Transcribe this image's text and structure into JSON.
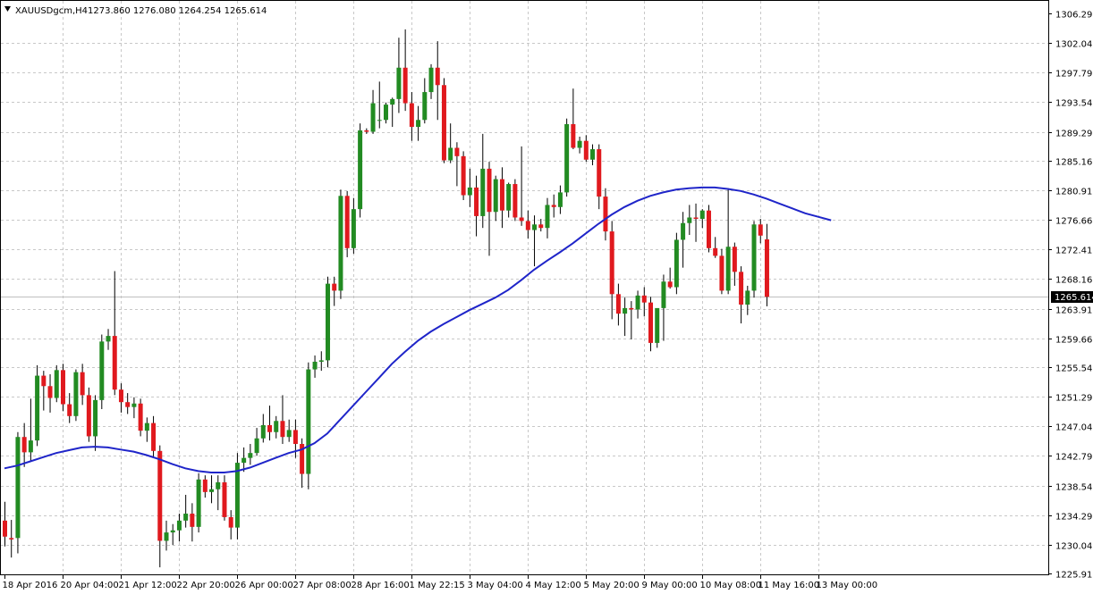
{
  "header": {
    "symbol": "XAUUSDgcm,H4",
    "ohlc": "1273.860 1276.080 1264.254 1265.614",
    "icon": "chart-dropdown-icon"
  },
  "colors": {
    "background": "#ffffff",
    "grid": "#c8c8c8",
    "bull_body": "#228b22",
    "bear_body": "#e0191e",
    "wick": "#000000",
    "moving_average": "#1f25c9",
    "last_price_line": "#c0c0c0",
    "last_price_tag": "#000000"
  },
  "chart_data": {
    "type": "candlestick",
    "symbol": "XAUUSDgcm",
    "timeframe": "H4",
    "ylim": [
      1225.915,
      1306.29
    ],
    "grid": true,
    "yticks": [
      1306.29,
      1302.04,
      1297.79,
      1293.54,
      1289.29,
      1285.165,
      1280.915,
      1276.665,
      1272.415,
      1268.165,
      1263.915,
      1259.665,
      1255.54,
      1251.29,
      1247.04,
      1242.79,
      1238.54,
      1234.29,
      1230.04,
      1225.915
    ],
    "ytick_labels": [
      "1306.290",
      "1302.040",
      "1297.790",
      "1293.540",
      "1289.290",
      "1285.165",
      "1280.915",
      "1276.665",
      "1272.415",
      "1268.165",
      "1263.915",
      "1259.665",
      "1255.540",
      "1251.290",
      "1247.040",
      "1242.790",
      "1238.540",
      "1234.290",
      "1230.040",
      "1225.915"
    ],
    "xtick_labels": [
      {
        "bar": 0,
        "label": "18 Apr 2016"
      },
      {
        "bar": 9,
        "label": "20 Apr 04:00"
      },
      {
        "bar": 18,
        "label": "21 Apr 12:00"
      },
      {
        "bar": 27,
        "label": "22 Apr 20:00"
      },
      {
        "bar": 36,
        "label": "26 Apr 00:00"
      },
      {
        "bar": 45,
        "label": "27 Apr 08:00"
      },
      {
        "bar": 54,
        "label": "28 Apr 16:00"
      },
      {
        "bar": 63,
        "label": "1 May 22:15"
      },
      {
        "bar": 72,
        "label": "3 May 04:00"
      },
      {
        "bar": 81,
        "label": "4 May 12:00"
      },
      {
        "bar": 90,
        "label": "5 May 20:00"
      },
      {
        "bar": 99,
        "label": "9 May 00:00"
      },
      {
        "bar": 108,
        "label": "10 May 08:00"
      },
      {
        "bar": 117,
        "label": "11 May 16:00"
      },
      {
        "bar": 126,
        "label": "13 May 00:00"
      }
    ],
    "last_price": 1265.614,
    "last_price_label": "1265.614",
    "candles": [
      {
        "o": 1233.5,
        "h": 1236.2,
        "l": 1229.8,
        "c": 1231.2
      },
      {
        "o": 1231.0,
        "h": 1233.6,
        "l": 1228.2,
        "c": 1230.8
      },
      {
        "o": 1231.0,
        "h": 1246.2,
        "l": 1228.8,
        "c": 1245.5
      },
      {
        "o": 1245.5,
        "h": 1247.5,
        "l": 1241.2,
        "c": 1243.3
      },
      {
        "o": 1243.3,
        "h": 1251.0,
        "l": 1242.0,
        "c": 1245.0
      },
      {
        "o": 1245.0,
        "h": 1255.8,
        "l": 1244.2,
        "c": 1254.3
      },
      {
        "o": 1254.3,
        "h": 1255.0,
        "l": 1249.3,
        "c": 1252.8
      },
      {
        "o": 1252.8,
        "h": 1254.5,
        "l": 1249.0,
        "c": 1251.1
      },
      {
        "o": 1251.1,
        "h": 1255.8,
        "l": 1250.5,
        "c": 1255.1
      },
      {
        "o": 1255.1,
        "h": 1256.0,
        "l": 1249.2,
        "c": 1250.2
      },
      {
        "o": 1250.2,
        "h": 1251.8,
        "l": 1247.5,
        "c": 1248.5
      },
      {
        "o": 1248.5,
        "h": 1255.2,
        "l": 1247.8,
        "c": 1254.8
      },
      {
        "o": 1254.8,
        "h": 1256.0,
        "l": 1250.1,
        "c": 1251.5
      },
      {
        "o": 1251.5,
        "h": 1252.6,
        "l": 1244.8,
        "c": 1245.6
      },
      {
        "o": 1245.6,
        "h": 1251.5,
        "l": 1243.5,
        "c": 1250.8
      },
      {
        "o": 1250.8,
        "h": 1260.2,
        "l": 1249.5,
        "c": 1259.2
      },
      {
        "o": 1259.2,
        "h": 1261.0,
        "l": 1258.0,
        "c": 1260.0
      },
      {
        "o": 1260.0,
        "h": 1269.3,
        "l": 1251.5,
        "c": 1252.3
      },
      {
        "o": 1252.3,
        "h": 1253.2,
        "l": 1249.0,
        "c": 1250.5
      },
      {
        "o": 1250.5,
        "h": 1251.8,
        "l": 1248.8,
        "c": 1249.8
      },
      {
        "o": 1249.8,
        "h": 1251.2,
        "l": 1248.2,
        "c": 1250.3
      },
      {
        "o": 1250.3,
        "h": 1251.0,
        "l": 1245.6,
        "c": 1246.4
      },
      {
        "o": 1246.4,
        "h": 1248.3,
        "l": 1244.8,
        "c": 1247.5
      },
      {
        "o": 1247.5,
        "h": 1248.5,
        "l": 1242.5,
        "c": 1243.5
      },
      {
        "o": 1243.5,
        "h": 1244.3,
        "l": 1226.8,
        "c": 1230.6
      },
      {
        "o": 1230.6,
        "h": 1233.5,
        "l": 1229.2,
        "c": 1231.8
      },
      {
        "o": 1231.8,
        "h": 1233.0,
        "l": 1230.0,
        "c": 1232.1
      },
      {
        "o": 1232.1,
        "h": 1234.5,
        "l": 1230.5,
        "c": 1233.5
      },
      {
        "o": 1233.5,
        "h": 1237.2,
        "l": 1232.5,
        "c": 1234.5
      },
      {
        "o": 1234.5,
        "h": 1236.0,
        "l": 1230.5,
        "c": 1232.6
      },
      {
        "o": 1232.6,
        "h": 1240.3,
        "l": 1231.8,
        "c": 1239.4
      },
      {
        "o": 1239.4,
        "h": 1240.0,
        "l": 1236.8,
        "c": 1237.6
      },
      {
        "o": 1237.6,
        "h": 1240.0,
        "l": 1236.0,
        "c": 1238.0
      },
      {
        "o": 1238.0,
        "h": 1240.0,
        "l": 1235.0,
        "c": 1239.0
      },
      {
        "o": 1239.0,
        "h": 1240.0,
        "l": 1233.5,
        "c": 1234.0
      },
      {
        "o": 1234.0,
        "h": 1235.0,
        "l": 1230.8,
        "c": 1232.5
      },
      {
        "o": 1232.5,
        "h": 1243.2,
        "l": 1230.8,
        "c": 1241.8
      },
      {
        "o": 1241.8,
        "h": 1244.0,
        "l": 1240.5,
        "c": 1242.5
      },
      {
        "o": 1242.5,
        "h": 1244.5,
        "l": 1241.5,
        "c": 1243.2
      },
      {
        "o": 1243.2,
        "h": 1246.8,
        "l": 1242.8,
        "c": 1245.3
      },
      {
        "o": 1245.3,
        "h": 1248.8,
        "l": 1244.7,
        "c": 1247.2
      },
      {
        "o": 1247.2,
        "h": 1250.0,
        "l": 1245.0,
        "c": 1246.2
      },
      {
        "o": 1246.2,
        "h": 1248.5,
        "l": 1245.3,
        "c": 1247.8
      },
      {
        "o": 1247.8,
        "h": 1251.5,
        "l": 1244.5,
        "c": 1245.5
      },
      {
        "o": 1245.5,
        "h": 1248.0,
        "l": 1244.8,
        "c": 1246.5
      },
      {
        "o": 1246.5,
        "h": 1248.0,
        "l": 1242.5,
        "c": 1244.5
      },
      {
        "o": 1244.5,
        "h": 1245.3,
        "l": 1238.2,
        "c": 1240.2
      },
      {
        "o": 1240.2,
        "h": 1256.2,
        "l": 1238.0,
        "c": 1255.2
      },
      {
        "o": 1255.2,
        "h": 1257.2,
        "l": 1254.0,
        "c": 1256.3
      },
      {
        "o": 1256.3,
        "h": 1257.8,
        "l": 1255.0,
        "c": 1256.5
      },
      {
        "o": 1256.5,
        "h": 1268.5,
        "l": 1255.5,
        "c": 1267.5
      },
      {
        "o": 1267.5,
        "h": 1268.5,
        "l": 1264.3,
        "c": 1266.5
      },
      {
        "o": 1266.5,
        "h": 1281.0,
        "l": 1265.3,
        "c": 1280.1
      },
      {
        "o": 1280.1,
        "h": 1280.8,
        "l": 1271.3,
        "c": 1272.6
      },
      {
        "o": 1272.6,
        "h": 1279.8,
        "l": 1271.8,
        "c": 1278.2
      },
      {
        "o": 1278.2,
        "h": 1290.5,
        "l": 1277.0,
        "c": 1289.5
      },
      {
        "o": 1289.5,
        "h": 1289.8,
        "l": 1289.0,
        "c": 1289.3
      },
      {
        "o": 1289.3,
        "h": 1295.3,
        "l": 1289.0,
        "c": 1293.4
      },
      {
        "o": 1291.0,
        "h": 1296.5,
        "l": 1289.8,
        "c": 1291.0
      },
      {
        "o": 1291.0,
        "h": 1293.5,
        "l": 1290.5,
        "c": 1293.2
      },
      {
        "o": 1293.2,
        "h": 1294.2,
        "l": 1290.0,
        "c": 1294.0
      },
      {
        "o": 1294.0,
        "h": 1302.8,
        "l": 1292.0,
        "c": 1298.5
      },
      {
        "o": 1298.5,
        "h": 1304.0,
        "l": 1292.3,
        "c": 1293.4
      },
      {
        "o": 1293.4,
        "h": 1295.0,
        "l": 1288.0,
        "c": 1290.0
      },
      {
        "o": 1290.0,
        "h": 1293.0,
        "l": 1288.0,
        "c": 1291.0
      },
      {
        "o": 1291.0,
        "h": 1297.0,
        "l": 1290.5,
        "c": 1295.0
      },
      {
        "o": 1295.0,
        "h": 1299.0,
        "l": 1294.0,
        "c": 1298.5
      },
      {
        "o": 1298.5,
        "h": 1302.3,
        "l": 1291.0,
        "c": 1296.0
      },
      {
        "o": 1296.0,
        "h": 1297.0,
        "l": 1284.8,
        "c": 1285.2
      },
      {
        "o": 1285.2,
        "h": 1290.5,
        "l": 1284.8,
        "c": 1287.0
      },
      {
        "o": 1287.0,
        "h": 1287.8,
        "l": 1281.5,
        "c": 1285.8
      },
      {
        "o": 1285.8,
        "h": 1286.5,
        "l": 1279.5,
        "c": 1280.2
      },
      {
        "o": 1280.2,
        "h": 1284.0,
        "l": 1278.5,
        "c": 1281.3
      },
      {
        "o": 1281.3,
        "h": 1283.0,
        "l": 1274.3,
        "c": 1277.2
      },
      {
        "o": 1277.2,
        "h": 1289.0,
        "l": 1275.5,
        "c": 1284.0
      },
      {
        "o": 1284.0,
        "h": 1285.0,
        "l": 1271.5,
        "c": 1277.8
      },
      {
        "o": 1277.8,
        "h": 1283.0,
        "l": 1276.5,
        "c": 1282.5
      },
      {
        "o": 1282.5,
        "h": 1284.2,
        "l": 1275.5,
        "c": 1278.0
      },
      {
        "o": 1278.0,
        "h": 1282.0,
        "l": 1277.0,
        "c": 1281.8
      },
      {
        "o": 1281.8,
        "h": 1282.5,
        "l": 1276.5,
        "c": 1277.0
      },
      {
        "o": 1277.0,
        "h": 1287.2,
        "l": 1275.8,
        "c": 1276.5
      },
      {
        "o": 1276.5,
        "h": 1278.0,
        "l": 1274.0,
        "c": 1275.2
      },
      {
        "o": 1275.2,
        "h": 1277.3,
        "l": 1270.0,
        "c": 1276.0
      },
      {
        "o": 1276.0,
        "h": 1276.8,
        "l": 1275.0,
        "c": 1275.5
      },
      {
        "o": 1275.5,
        "h": 1279.8,
        "l": 1274.0,
        "c": 1278.8
      },
      {
        "o": 1278.8,
        "h": 1280.3,
        "l": 1277.0,
        "c": 1278.5
      },
      {
        "o": 1278.5,
        "h": 1281.6,
        "l": 1277.5,
        "c": 1280.6
      },
      {
        "o": 1280.6,
        "h": 1291.2,
        "l": 1280.0,
        "c": 1290.4
      },
      {
        "o": 1290.4,
        "h": 1295.5,
        "l": 1286.8,
        "c": 1287.0
      },
      {
        "o": 1287.0,
        "h": 1288.6,
        "l": 1286.2,
        "c": 1288.0
      },
      {
        "o": 1288.0,
        "h": 1288.8,
        "l": 1285.0,
        "c": 1285.3
      },
      {
        "o": 1285.3,
        "h": 1287.5,
        "l": 1284.5,
        "c": 1286.8
      },
      {
        "o": 1286.8,
        "h": 1287.5,
        "l": 1278.2,
        "c": 1280.0
      },
      {
        "o": 1280.0,
        "h": 1281.2,
        "l": 1273.7,
        "c": 1275.0
      },
      {
        "o": 1275.0,
        "h": 1276.5,
        "l": 1262.4,
        "c": 1266.0
      },
      {
        "o": 1266.0,
        "h": 1267.5,
        "l": 1261.5,
        "c": 1263.2
      },
      {
        "o": 1263.2,
        "h": 1265.5,
        "l": 1260.0,
        "c": 1264.0
      },
      {
        "o": 1264.0,
        "h": 1265.0,
        "l": 1259.5,
        "c": 1263.8
      },
      {
        "o": 1263.8,
        "h": 1266.5,
        "l": 1262.5,
        "c": 1265.8
      },
      {
        "o": 1265.8,
        "h": 1267.0,
        "l": 1262.8,
        "c": 1264.8
      },
      {
        "o": 1264.8,
        "h": 1265.6,
        "l": 1257.8,
        "c": 1259.0
      },
      {
        "o": 1259.0,
        "h": 1263.8,
        "l": 1258.3,
        "c": 1264.0
      },
      {
        "o": 1264.0,
        "h": 1268.8,
        "l": 1259.3,
        "c": 1267.8
      },
      {
        "o": 1267.8,
        "h": 1269.8,
        "l": 1266.8,
        "c": 1267.0
      },
      {
        "o": 1267.0,
        "h": 1274.8,
        "l": 1266.0,
        "c": 1273.8
      },
      {
        "o": 1273.8,
        "h": 1277.8,
        "l": 1269.8,
        "c": 1276.2
      },
      {
        "o": 1276.2,
        "h": 1278.8,
        "l": 1274.5,
        "c": 1277.0
      },
      {
        "o": 1277.0,
        "h": 1279.0,
        "l": 1273.5,
        "c": 1276.8
      },
      {
        "o": 1276.8,
        "h": 1278.2,
        "l": 1275.5,
        "c": 1278.0
      },
      {
        "o": 1278.0,
        "h": 1278.8,
        "l": 1272.0,
        "c": 1272.6
      },
      {
        "o": 1272.6,
        "h": 1274.2,
        "l": 1271.2,
        "c": 1271.5
      },
      {
        "o": 1271.5,
        "h": 1272.5,
        "l": 1266.0,
        "c": 1266.5
      },
      {
        "o": 1266.5,
        "h": 1281.2,
        "l": 1266.0,
        "c": 1272.8
      },
      {
        "o": 1272.8,
        "h": 1273.4,
        "l": 1267.2,
        "c": 1269.2
      },
      {
        "o": 1269.2,
        "h": 1270.0,
        "l": 1261.8,
        "c": 1264.5
      },
      {
        "o": 1264.5,
        "h": 1267.2,
        "l": 1263.0,
        "c": 1266.5
      },
      {
        "o": 1266.5,
        "h": 1276.5,
        "l": 1265.5,
        "c": 1276.0
      },
      {
        "o": 1276.0,
        "h": 1276.8,
        "l": 1273.3,
        "c": 1274.4
      },
      {
        "o": 1273.86,
        "h": 1276.08,
        "l": 1264.254,
        "c": 1265.614
      }
    ],
    "moving_average": [
      {
        "bar": 0,
        "value": 1241.0
      },
      {
        "bar": 2,
        "value": 1241.4
      },
      {
        "bar": 4,
        "value": 1242.0
      },
      {
        "bar": 6,
        "value": 1242.6
      },
      {
        "bar": 8,
        "value": 1243.2
      },
      {
        "bar": 10,
        "value": 1243.6
      },
      {
        "bar": 12,
        "value": 1244.0
      },
      {
        "bar": 14,
        "value": 1244.1
      },
      {
        "bar": 16,
        "value": 1244.0
      },
      {
        "bar": 18,
        "value": 1243.7
      },
      {
        "bar": 20,
        "value": 1243.4
      },
      {
        "bar": 22,
        "value": 1242.9
      },
      {
        "bar": 24,
        "value": 1242.3
      },
      {
        "bar": 26,
        "value": 1241.6
      },
      {
        "bar": 28,
        "value": 1241.0
      },
      {
        "bar": 30,
        "value": 1240.6
      },
      {
        "bar": 32,
        "value": 1240.4
      },
      {
        "bar": 34,
        "value": 1240.4
      },
      {
        "bar": 36,
        "value": 1240.6
      },
      {
        "bar": 38,
        "value": 1241.1
      },
      {
        "bar": 40,
        "value": 1241.8
      },
      {
        "bar": 42,
        "value": 1242.5
      },
      {
        "bar": 44,
        "value": 1243.2
      },
      {
        "bar": 46,
        "value": 1243.7
      },
      {
        "bar": 48,
        "value": 1244.6
      },
      {
        "bar": 50,
        "value": 1246.0
      },
      {
        "bar": 52,
        "value": 1248.0
      },
      {
        "bar": 54,
        "value": 1250.0
      },
      {
        "bar": 56,
        "value": 1252.0
      },
      {
        "bar": 58,
        "value": 1254.0
      },
      {
        "bar": 60,
        "value": 1256.0
      },
      {
        "bar": 62,
        "value": 1257.7
      },
      {
        "bar": 64,
        "value": 1259.3
      },
      {
        "bar": 66,
        "value": 1260.6
      },
      {
        "bar": 68,
        "value": 1261.7
      },
      {
        "bar": 70,
        "value": 1262.7
      },
      {
        "bar": 72,
        "value": 1263.7
      },
      {
        "bar": 74,
        "value": 1264.6
      },
      {
        "bar": 76,
        "value": 1265.5
      },
      {
        "bar": 78,
        "value": 1266.6
      },
      {
        "bar": 80,
        "value": 1268.0
      },
      {
        "bar": 82,
        "value": 1269.5
      },
      {
        "bar": 84,
        "value": 1270.8
      },
      {
        "bar": 86,
        "value": 1272.0
      },
      {
        "bar": 88,
        "value": 1273.3
      },
      {
        "bar": 90,
        "value": 1274.7
      },
      {
        "bar": 92,
        "value": 1276.1
      },
      {
        "bar": 94,
        "value": 1277.4
      },
      {
        "bar": 96,
        "value": 1278.5
      },
      {
        "bar": 98,
        "value": 1279.4
      },
      {
        "bar": 100,
        "value": 1280.1
      },
      {
        "bar": 102,
        "value": 1280.6
      },
      {
        "bar": 104,
        "value": 1281.0
      },
      {
        "bar": 106,
        "value": 1281.2
      },
      {
        "bar": 108,
        "value": 1281.3
      },
      {
        "bar": 110,
        "value": 1281.3
      },
      {
        "bar": 112,
        "value": 1281.1
      },
      {
        "bar": 114,
        "value": 1280.8
      },
      {
        "bar": 116,
        "value": 1280.3
      },
      {
        "bar": 118,
        "value": 1279.7
      },
      {
        "bar": 120,
        "value": 1279.0
      },
      {
        "bar": 122,
        "value": 1278.3
      },
      {
        "bar": 124,
        "value": 1277.6
      },
      {
        "bar": 126,
        "value": 1277.1
      },
      {
        "bar": 128,
        "value": 1276.6
      }
    ]
  }
}
